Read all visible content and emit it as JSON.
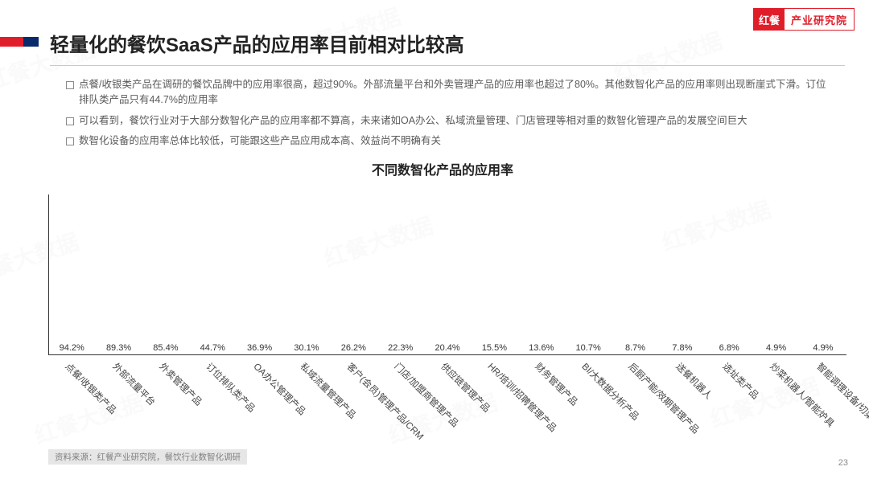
{
  "watermark_text": "红餐大数据",
  "logo": {
    "left": "红餐",
    "right": "产业研究院"
  },
  "title": "轻量化的餐饮SaaS产品的应用率目前相对比较高",
  "bullets": [
    "点餐/收银类产品在调研的餐饮品牌中的应用率很高，超过90%。外部流量平台和外卖管理产品的应用率也超过了80%。其他数智化产品的应用率则出现断崖式下滑。订位排队类产品只有44.7%的应用率",
    "可以看到，餐饮行业对于大部分数智化产品的应用率都不算高，未来诸如OA办公、私域流量管理、门店管理等相对重的数智化管理产品的发展空间巨大",
    "数智化设备的应用率总体比较低，可能跟这些产品应用成本高、效益尚不明确有关"
  ],
  "chart": {
    "type": "bar",
    "title": "不同数智化产品的应用率",
    "y_max": 100,
    "value_suffix": "%",
    "bar_color": "#e01e2a",
    "axis_color": "#333333",
    "label_fontsize": 11.5,
    "value_fontsize": 11,
    "title_fontsize": 16,
    "background_color": "#ffffff",
    "categories": [
      "点餐/收银类产品",
      "外部流量平台",
      "外卖管理产品",
      "订位排队类产品",
      "OA办公管理产品",
      "私域流量管理产品",
      "客户(会员)管理产品/CRM",
      "门店/加盟商管理产品",
      "供应链管理产品",
      "HR/培训/招聘管理产品",
      "财务管理产品",
      "BI/大数据分析产品",
      "后厨产能/效期管理产品",
      "送餐机器人",
      "选址类产品",
      "炒菜机器人/智能炉具",
      "智能调理设备/切菜机器人"
    ],
    "values": [
      94.2,
      89.3,
      85.4,
      44.7,
      36.9,
      30.1,
      26.2,
      22.3,
      20.4,
      15.5,
      13.6,
      10.7,
      8.7,
      7.8,
      6.8,
      4.9,
      4.9
    ]
  },
  "source": "资料来源：红餐产业研究院，餐饮行业数智化调研",
  "page_number": "23"
}
